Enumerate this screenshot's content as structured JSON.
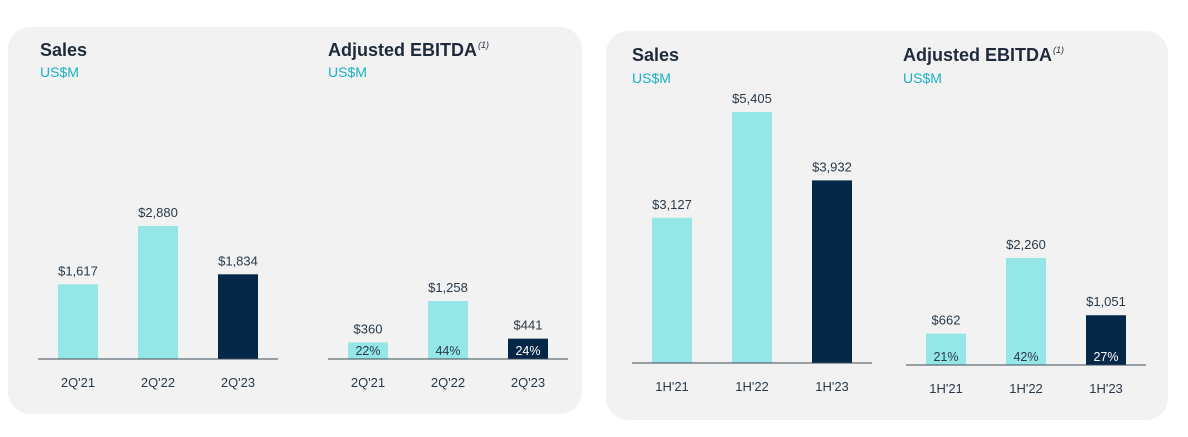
{
  "colors": {
    "light": "#95e6e6",
    "dark": "#052848",
    "axis": "#3a4a5a",
    "text": "#2a3a4a",
    "accent": "#1ab0c8"
  },
  "panels": [
    {
      "sales": {
        "title": "Sales",
        "unit": "US$M"
      },
      "ebitda": {
        "title": "Adjusted EBITDA",
        "footnote": "(1)",
        "unit": "US$M"
      }
    },
    {
      "sales": {
        "title": "Sales",
        "unit": "US$M"
      },
      "ebitda": {
        "title": "Adjusted EBITDA",
        "footnote": "(1)",
        "unit": "US$M"
      }
    }
  ],
  "chart_data": [
    {
      "type": "bar",
      "title": "Sales",
      "ylabel": "US$M",
      "categories": [
        "2Q'21",
        "2Q'22",
        "2Q'23"
      ],
      "values": [
        1617,
        2880,
        1834
      ],
      "labels": [
        "$1,617",
        "$2,880",
        "$1,834"
      ]
    },
    {
      "type": "bar",
      "title": "Adjusted EBITDA",
      "ylabel": "US$M",
      "categories": [
        "2Q'21",
        "2Q'22",
        "2Q'23"
      ],
      "values": [
        360,
        1258,
        441
      ],
      "labels": [
        "$360",
        "$1,258",
        "$441"
      ],
      "margins": [
        "22%",
        "44%",
        "24%"
      ]
    },
    {
      "type": "bar",
      "title": "Sales",
      "ylabel": "US$M",
      "categories": [
        "1H'21",
        "1H'22",
        "1H'23"
      ],
      "values": [
        3127,
        5405,
        3932
      ],
      "labels": [
        "$3,127",
        "$5,405",
        "$3,932"
      ]
    },
    {
      "type": "bar",
      "title": "Adjusted EBITDA",
      "ylabel": "US$M",
      "categories": [
        "1H'21",
        "1H'22",
        "1H'23"
      ],
      "values": [
        662,
        2260,
        1051
      ],
      "labels": [
        "$662",
        "$2,260",
        "$1,051"
      ],
      "margins": [
        "21%",
        "42%",
        "27%"
      ]
    }
  ]
}
